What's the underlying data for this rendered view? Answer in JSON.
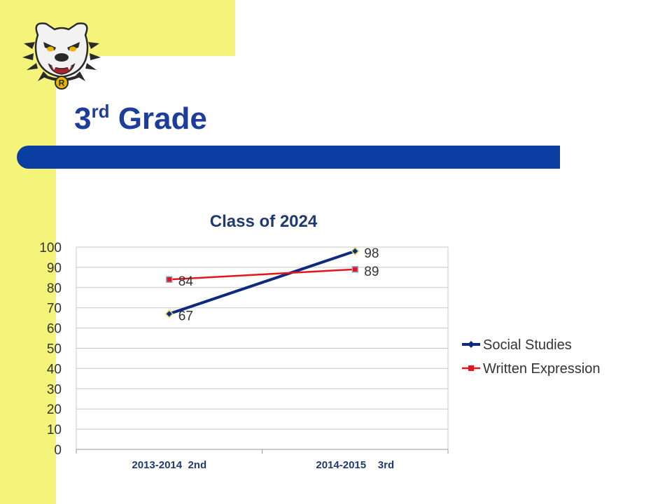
{
  "slide": {
    "title_main": "3",
    "title_sup": "rd",
    "title_rest": " Grade"
  },
  "logo": {
    "icon": "bulldog-mascot-icon",
    "badge_letter": "R"
  },
  "colors": {
    "yellow": "#f4f47a",
    "title_blue": "#1c3d9c",
    "bar_blue": "#0b3ea3",
    "series_social": "#0d2a80",
    "series_written": "#e8141c"
  },
  "chart_data": {
    "type": "line",
    "title": "Class of 2024",
    "categories": [
      "2013-2014  2nd",
      "2014-2015    3rd"
    ],
    "ylim": [
      0,
      100
    ],
    "yticks": [
      0,
      10,
      20,
      30,
      40,
      50,
      60,
      70,
      80,
      90,
      100
    ],
    "grid": true,
    "legend_position": "right",
    "series": [
      {
        "name": "Social Studies",
        "values": [
          67,
          98
        ],
        "marker": "diamond",
        "color": "#0d2a80"
      },
      {
        "name": "Written Expression",
        "values": [
          84,
          89
        ],
        "marker": "square",
        "color": "#e8141c"
      }
    ]
  }
}
